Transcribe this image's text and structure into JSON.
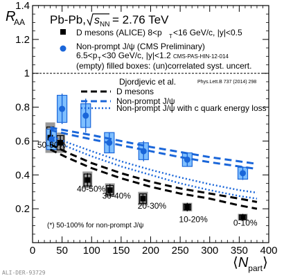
{
  "chart_data": {
    "type": "scatter",
    "x_axis": {
      "range": [
        0,
        400
      ],
      "ticks": [
        "0",
        "50",
        "100",
        "150",
        "200",
        "250",
        "300",
        "350",
        "400"
      ]
    },
    "y_axis": {
      "range": [
        0,
        1.4
      ],
      "ticks": [
        "0.2",
        "0.4",
        "0.6",
        "0.8",
        "1",
        "1.2",
        "1.4"
      ],
      "reference_line": 1
    },
    "collision_label": "Pb-Pb,",
    "energy_label": "= 2.76 TeV",
    "legend": {
      "d_mesons": "D mesons (ALICE) 8<p",
      "d_mesons_cut": "<16 GeV/c, |y|<0.5",
      "jpsi_title": "Non-prompt J/ψ (CMS Preliminary)",
      "jpsi_cut1": "6.5<p",
      "jpsi_cut2": "<30 GeV/c, |y|<1.2",
      "jpsi_source": "CMS-PAS-HIN-12-014",
      "boxes_note": "(empty) filled boxes: (un)correlated syst. uncert."
    },
    "model": {
      "title": "Djordjevic et al.",
      "reference": "Phys.Lett.B 737 (2014) 298",
      "curves": [
        "D mesons",
        "Non-prompt J/ψ",
        "Non-prompt J/ψ with c quark energy loss"
      ]
    },
    "series": [
      {
        "name": "D mesons (ALICE)",
        "color": "#000000",
        "x": [
          30,
          47,
          93,
          131,
          187,
          262,
          356
        ],
        "y": [
          0.62,
          0.59,
          0.37,
          0.31,
          0.26,
          0.21,
          0.15
        ],
        "err": [
          0.045,
          0.04,
          0.04,
          0.035,
          0.03,
          0.025,
          0.02
        ],
        "syst": [
          0.09,
          0.06,
          0.05,
          0.04,
          0.04,
          0.025,
          0.02
        ]
      },
      {
        "name": "Non-prompt J/ψ (CMS Preliminary)",
        "color": "#1a66d9",
        "x": [
          32,
          50,
          90,
          130,
          188,
          262,
          356
        ],
        "y": [
          0.61,
          0.79,
          0.75,
          0.59,
          0.54,
          0.49,
          0.41
        ],
        "err": [
          0.05,
          0.09,
          0.1,
          0.06,
          0.06,
          0.04,
          0.04
        ],
        "syst": [
          0.06,
          0.08,
          0.07,
          0.06,
          0.05,
          0.04,
          0.035
        ]
      }
    ],
    "models": [
      {
        "name": "D mesons",
        "style": "dashed-black",
        "x": [
          30,
          60,
          100,
          150,
          200,
          250,
          300,
          350,
          380
        ],
        "y": [
          0.55,
          0.5,
          0.44,
          0.38,
          0.33,
          0.29,
          0.26,
          0.22,
          0.2
        ]
      },
      {
        "name": "D mesons (band upper)",
        "style": "dashed-black",
        "x": [
          30,
          60,
          100,
          150,
          200,
          250,
          300,
          350,
          380
        ],
        "y": [
          0.58,
          0.53,
          0.47,
          0.41,
          0.36,
          0.32,
          0.29,
          0.26,
          0.24
        ]
      },
      {
        "name": "Non-prompt J/ψ",
        "style": "dashed-blue",
        "x": [
          30,
          60,
          100,
          150,
          200,
          250,
          300,
          350,
          380
        ],
        "y": [
          0.665,
          0.64,
          0.61,
          0.575,
          0.54,
          0.505,
          0.475,
          0.45,
          0.435
        ]
      },
      {
        "name": "Non-prompt J/ψ (band upper)",
        "style": "dashed-blue",
        "x": [
          30,
          60,
          100,
          150,
          200,
          250,
          300,
          350,
          380
        ],
        "y": [
          0.68,
          0.66,
          0.635,
          0.6,
          0.565,
          0.535,
          0.505,
          0.48,
          0.465
        ]
      },
      {
        "name": "Non-prompt J/ψ with c quark energy loss",
        "style": "dotted-blue",
        "x": [
          30,
          60,
          100,
          150,
          200,
          250,
          300,
          350,
          380
        ],
        "y": [
          0.63,
          0.59,
          0.54,
          0.48,
          0.43,
          0.385,
          0.345,
          0.31,
          0.295
        ]
      },
      {
        "name": "Non-prompt J/ψ with c quark energy loss (band lower)",
        "style": "dotted-blue",
        "x": [
          30,
          60,
          100,
          150,
          200,
          250,
          300,
          350,
          380
        ],
        "y": [
          0.61,
          0.565,
          0.51,
          0.45,
          0.4,
          0.35,
          0.31,
          0.275,
          0.26
        ]
      }
    ],
    "centrality_labels": [
      {
        "text": "50-80%",
        "x": 8,
        "y": 0.56
      },
      {
        "text": "40-50%",
        "x": 75,
        "y": 0.3
      },
      {
        "text": "30-40%",
        "x": 118,
        "y": 0.26
      },
      {
        "text": "20-30%",
        "x": 178,
        "y": 0.2
      },
      {
        "text": "10-20%",
        "x": 248,
        "y": 0.12
      },
      {
        "text": "0-10%",
        "x": 340,
        "y": 0.1
      }
    ],
    "footnote": "(*) 50-100% for non-prompt J/ψ",
    "ylabel": "R",
    "ylabel_sub": "AA",
    "xlabel_sub": "part",
    "watermark": "ALI-DER-93729"
  }
}
